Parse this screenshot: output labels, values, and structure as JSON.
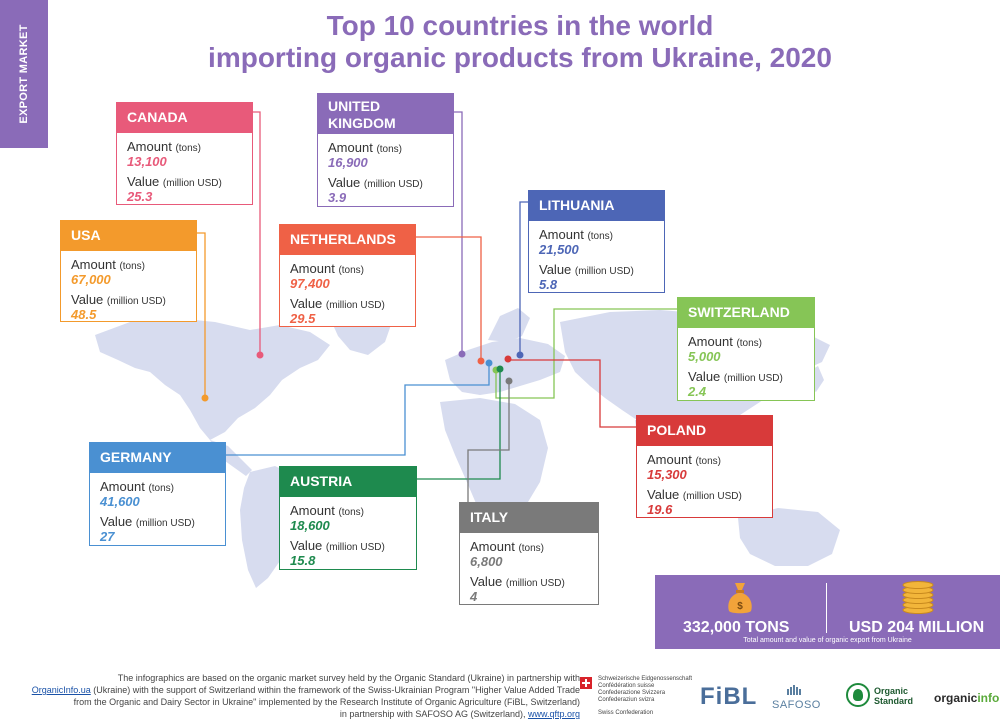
{
  "side_tab": "EXPORT MARKET",
  "title": {
    "line1": "Top 10 countries in the world",
    "line2": "importing organic products from Ukraine, 2020"
  },
  "labels": {
    "amount": "Amount",
    "amount_unit": "(tons)",
    "value": "Value",
    "value_unit": "(million USD)"
  },
  "countries": [
    {
      "id": "canada",
      "name": "CANADA",
      "amount": "13,100",
      "value": "25.3",
      "color": "#e85a7a"
    },
    {
      "id": "uk",
      "name_line1": "UNITED",
      "name_line2": "KINGDOM",
      "amount": "16,900",
      "value": "3.9",
      "color": "#8a6bb8"
    },
    {
      "id": "usa",
      "name": "USA",
      "amount": "67,000",
      "value": "48.5",
      "color": "#f39a2c"
    },
    {
      "id": "netherlands",
      "name": "NETHERLANDS",
      "amount": "97,400",
      "value": "29.5",
      "color": "#ef6146"
    },
    {
      "id": "lithuania",
      "name": "LITHUANIA",
      "amount": "21,500",
      "value": "5.8",
      "color": "#4d66b6"
    },
    {
      "id": "switzerland",
      "name": "SWITZERLAND",
      "amount": "5,000",
      "value": "2.4",
      "color": "#86c556"
    },
    {
      "id": "germany",
      "name": "GERMANY",
      "amount": "41,600",
      "value": "27",
      "color": "#4a90d2"
    },
    {
      "id": "austria",
      "name": "AUSTRIA",
      "amount": "18,600",
      "value": "15.8",
      "color": "#1e8a4e"
    },
    {
      "id": "italy",
      "name": "ITALY",
      "amount": "6,800",
      "value": "4",
      "color": "#7a7a7a"
    },
    {
      "id": "poland",
      "name": "POLAND",
      "amount": "15,300",
      "value": "19.6",
      "color": "#d83a3a"
    }
  ],
  "summary": {
    "tons": "332,000  TONS",
    "usd": "USD 204 MILLION",
    "caption": "Total amount and value of organic export from Ukraine",
    "icon_left": "money-bag-icon",
    "icon_right": "coin-stack-icon"
  },
  "footer": {
    "line1": "The infographics are based on the organic market survey held by the Organic Standard (Ukraine) in partnership with",
    "link1": "OrganicInfo.ua",
    "line2": " (Ukraine) with the support of Switzerland within the framework of the Swiss-Ukrainian Program \"Higher Value Added Trade",
    "line3": "from the Organic and Dairy Sector in Ukraine\" implemented by the Research Institute of Organic Agriculture (FiBL, Switzerland)",
    "line4": "in partnership with SAFOSO AG (Switzerland), ",
    "link2": "www.qftp.org"
  },
  "logos": {
    "swiss_line1": "Schweizerische Eidgenossenschaft",
    "swiss_line2": "Confédération suisse",
    "swiss_line3": "Confederazione Svizzera",
    "swiss_line4": "Confederaziun svizra",
    "swiss_sub": "Swiss Confederation",
    "fibl": "FiBL",
    "safoso": "SAFOSO",
    "os_line1": "Organic",
    "os_line2": "Standard",
    "oi_main": "organic",
    "oi_accent": "info"
  }
}
